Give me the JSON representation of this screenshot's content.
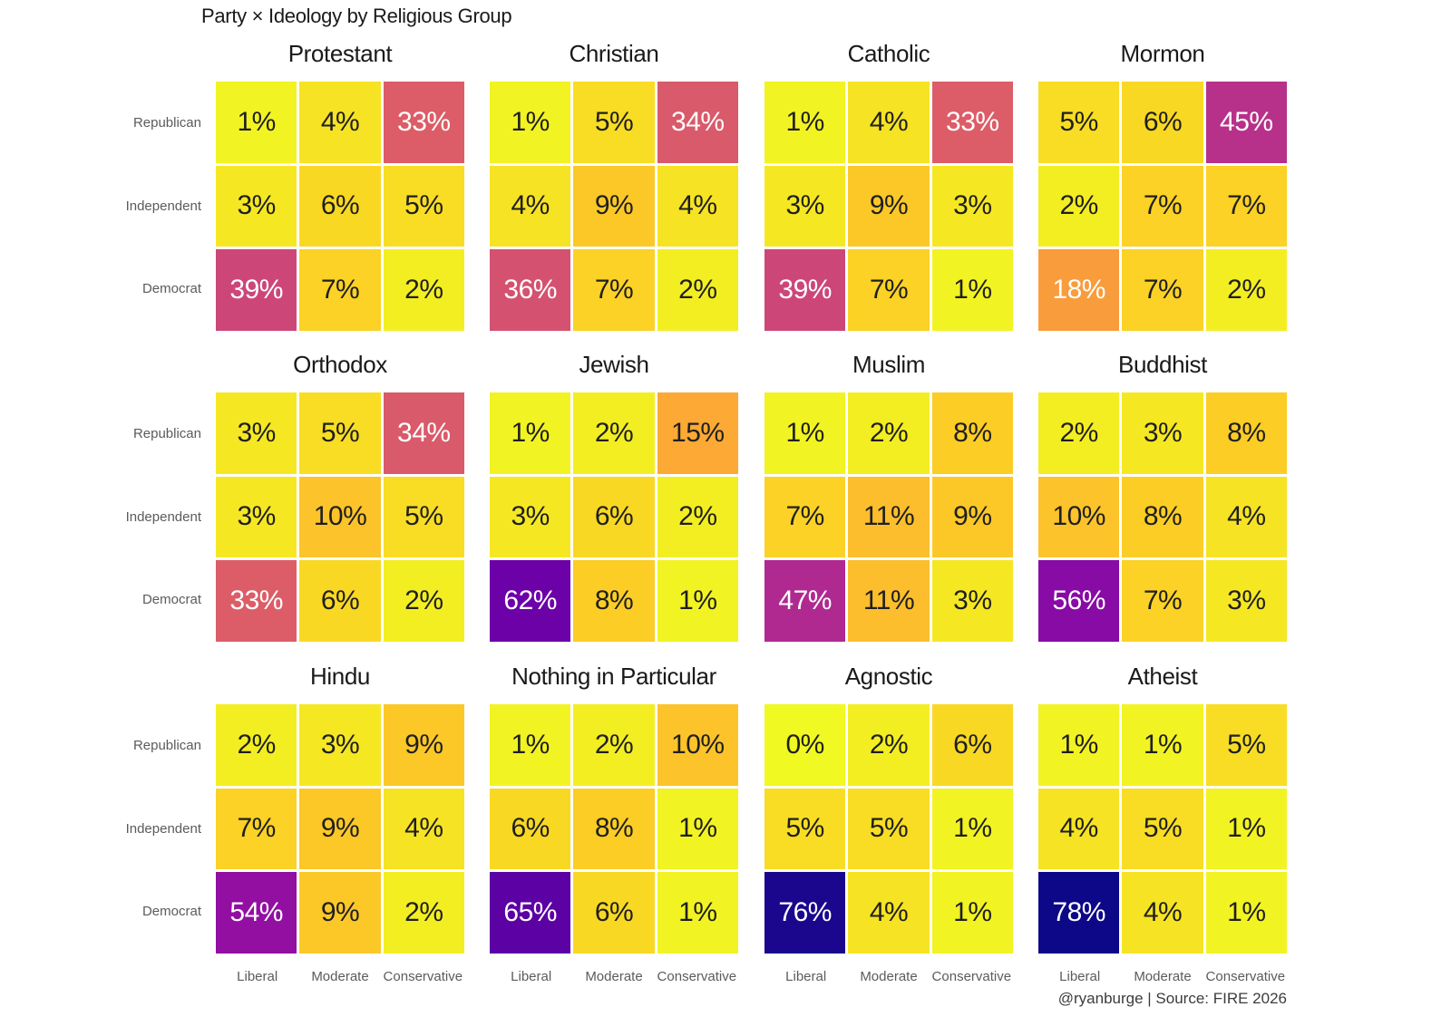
{
  "title": "Party × Ideology by Religious Group",
  "caption": "@ryanburge | Source: FIRE 2026",
  "chart_data": {
    "type": "heatmap",
    "title": "Party × Ideology by Religious Group",
    "rows": [
      "Republican",
      "Independent",
      "Democrat"
    ],
    "cols": [
      "Liberal",
      "Moderate",
      "Conservative"
    ],
    "value_format": "percent",
    "legend": "none",
    "color_scale": {
      "name": "plasma-reversed",
      "domain": [
        0,
        78
      ],
      "stops": [
        "#0d0887",
        "#41049d",
        "#6a00a8",
        "#8f0da4",
        "#b12a90",
        "#cc4778",
        "#e16462",
        "#f2844b",
        "#fca636",
        "#fcce25",
        "#f0f921"
      ]
    },
    "cell_text_dark": "#1f1f1f",
    "cell_text_light": "#ffffff",
    "white_text_min_value": 18,
    "facets": [
      {
        "group": "Protestant",
        "values": [
          [
            1,
            4,
            33
          ],
          [
            3,
            6,
            5
          ],
          [
            39,
            7,
            2
          ]
        ]
      },
      {
        "group": "Christian",
        "values": [
          [
            1,
            5,
            34
          ],
          [
            4,
            9,
            4
          ],
          [
            36,
            7,
            2
          ]
        ]
      },
      {
        "group": "Catholic",
        "values": [
          [
            1,
            4,
            33
          ],
          [
            3,
            9,
            3
          ],
          [
            39,
            7,
            1
          ]
        ]
      },
      {
        "group": "Mormon",
        "values": [
          [
            5,
            6,
            45
          ],
          [
            2,
            7,
            7
          ],
          [
            18,
            7,
            2
          ]
        ]
      },
      {
        "group": "Orthodox",
        "values": [
          [
            3,
            5,
            34
          ],
          [
            3,
            10,
            5
          ],
          [
            33,
            6,
            2
          ]
        ]
      },
      {
        "group": "Jewish",
        "values": [
          [
            1,
            2,
            15
          ],
          [
            3,
            6,
            2
          ],
          [
            62,
            8,
            1
          ]
        ]
      },
      {
        "group": "Muslim",
        "values": [
          [
            1,
            2,
            8
          ],
          [
            7,
            11,
            9
          ],
          [
            47,
            11,
            3
          ]
        ]
      },
      {
        "group": "Buddhist",
        "values": [
          [
            2,
            3,
            8
          ],
          [
            10,
            8,
            4
          ],
          [
            56,
            7,
            3
          ]
        ]
      },
      {
        "group": "Hindu",
        "values": [
          [
            2,
            3,
            9
          ],
          [
            7,
            9,
            4
          ],
          [
            54,
            9,
            2
          ]
        ]
      },
      {
        "group": "Nothing in Particular",
        "values": [
          [
            1,
            2,
            10
          ],
          [
            6,
            8,
            1
          ],
          [
            65,
            6,
            1
          ]
        ]
      },
      {
        "group": "Agnostic",
        "values": [
          [
            0,
            2,
            6
          ],
          [
            5,
            5,
            1
          ],
          [
            76,
            4,
            1
          ]
        ]
      },
      {
        "group": "Atheist",
        "values": [
          [
            1,
            1,
            5
          ],
          [
            4,
            5,
            1
          ],
          [
            78,
            4,
            1
          ]
        ]
      }
    ]
  }
}
